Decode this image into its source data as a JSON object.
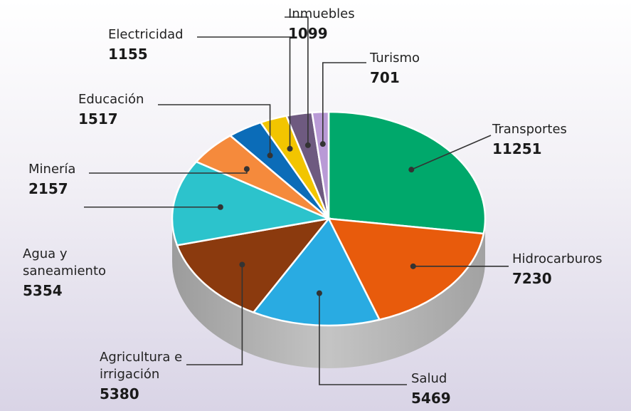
{
  "chart_data": {
    "type": "pie",
    "categories": [
      "Transportes",
      "Hidrocarburos",
      "Salud",
      "Agricultura e irrigación",
      "Agua y saneamiento",
      "Minería",
      "Educación",
      "Electricidad",
      "Inmuebles",
      "Turismo"
    ],
    "values": [
      11251,
      7230,
      5469,
      5380,
      5354,
      2157,
      1517,
      1155,
      1099,
      701
    ],
    "colors": [
      "#00a86b",
      "#e85b0c",
      "#29abe2",
      "#8b3a0e",
      "#2cc3cc",
      "#f58a3c",
      "#0b6cb8",
      "#f2c500",
      "#6e5a80",
      "#b99ad6"
    ]
  }
}
